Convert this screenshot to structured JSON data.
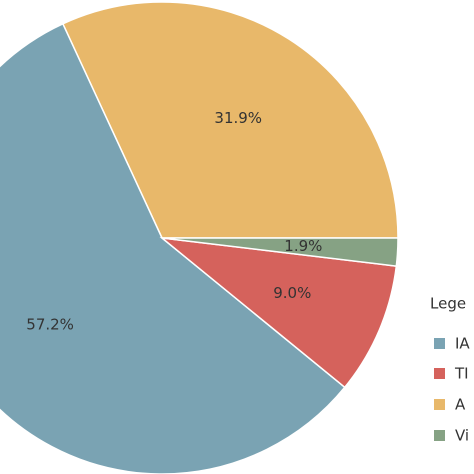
{
  "chart_data": {
    "type": "pie",
    "legend_title": "Lege",
    "categories": [
      "IA",
      "TI",
      "A",
      "Vi"
    ],
    "values": [
      57.2,
      9.0,
      31.9,
      1.9
    ],
    "value_labels": [
      "57.2%",
      "9.0%",
      "31.9%",
      "1.9%"
    ],
    "colors": [
      "#7aa3b3",
      "#d5625c",
      "#e8b86a",
      "#86a284"
    ],
    "legend": "right"
  }
}
